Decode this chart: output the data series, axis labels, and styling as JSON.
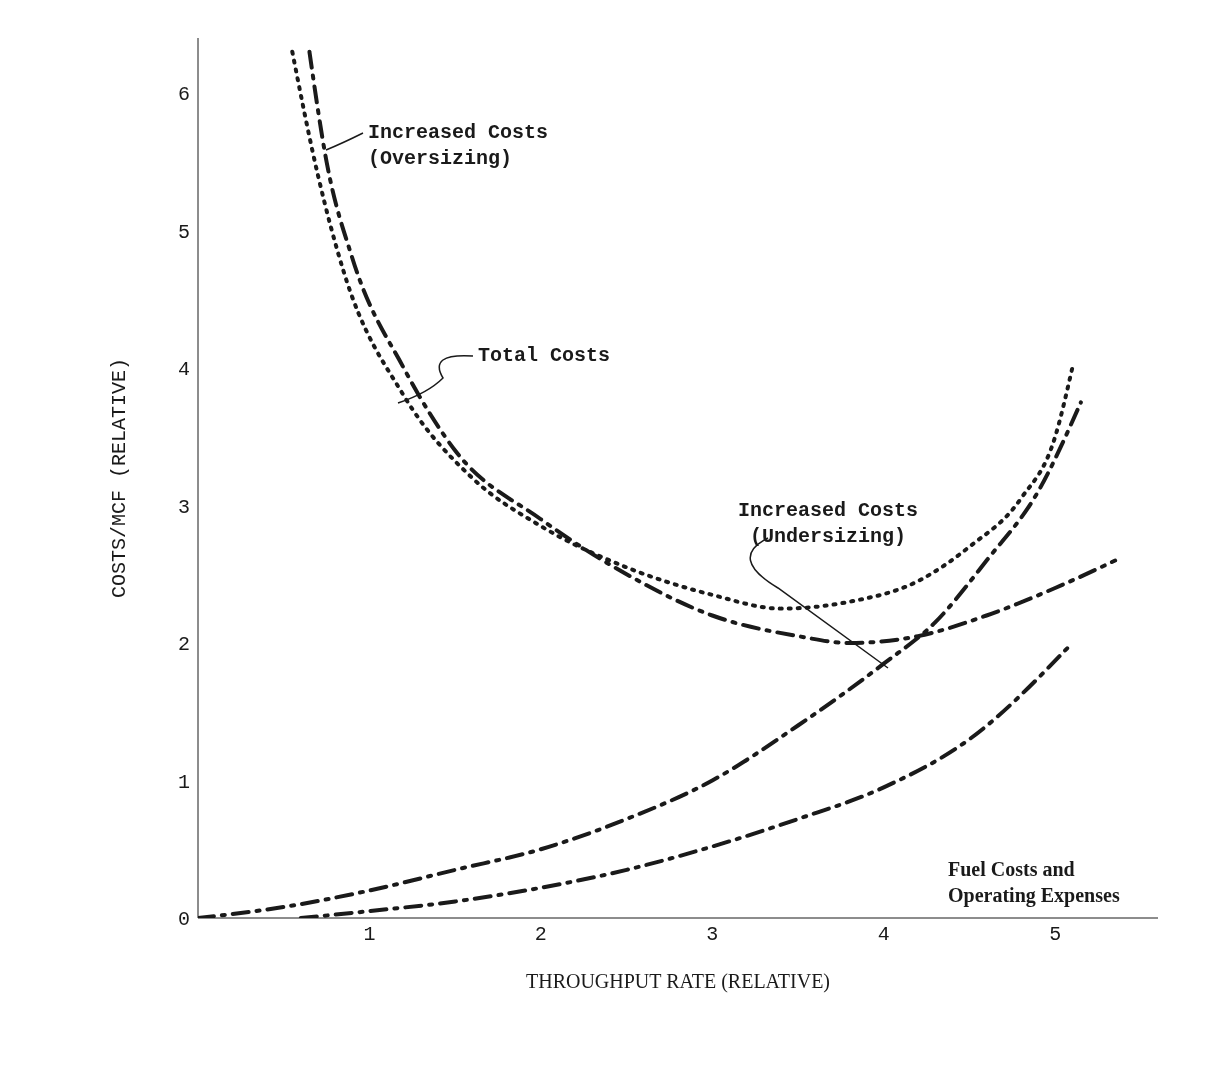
{
  "chart_data": {
    "type": "line",
    "xlabel": "THROUGHPUT RATE (RELATIVE)",
    "ylabel": "COSTS/MCF (RELATIVE)",
    "xlim": [
      0,
      5.6
    ],
    "xticks": [
      1,
      2,
      3,
      4,
      5
    ],
    "ylim": [
      0,
      6.4
    ],
    "yticks": [
      0,
      1,
      2,
      3,
      4,
      5,
      6
    ],
    "grid": false,
    "legend": false,
    "marker": "none",
    "series": [
      {
        "color": "#1a1a1a",
        "line_style": "dotted",
        "x": [
          0.55,
          0.7,
          0.85,
          1.2,
          1.6,
          2.0,
          2.5,
          3.0,
          3.4,
          3.8,
          4.2,
          4.5,
          4.8,
          5.0,
          5.1
        ],
        "values": [
          6.3,
          5.4,
          4.7,
          3.8,
          3.2,
          2.85,
          2.55,
          2.35,
          2.25,
          2.3,
          2.45,
          2.7,
          3.05,
          3.5,
          4.0
        ]
      },
      {
        "color": "#1a1a1a",
        "line_style": "dashed",
        "x": [
          0.65,
          0.75,
          0.9,
          1.2,
          1.5,
          2.0,
          2.5,
          3.0,
          3.5,
          3.8,
          4.2,
          4.6,
          5.0,
          5.35
        ],
        "values": [
          6.3,
          5.5,
          4.8,
          4.0,
          3.4,
          2.9,
          2.5,
          2.2,
          2.05,
          2.0,
          2.05,
          2.2,
          2.4,
          2.6
        ]
      },
      {
        "color": "#1a1a1a",
        "line_style": "dashed",
        "x": [
          0,
          0.5,
          1,
          1.5,
          2,
          2.5,
          3,
          3.5,
          4,
          4.3,
          4.6,
          4.9,
          5.15
        ],
        "values": [
          0,
          0.08,
          0.2,
          0.35,
          0.5,
          0.72,
          1.0,
          1.4,
          1.85,
          2.15,
          2.6,
          3.1,
          3.75
        ]
      },
      {
        "color": "#1a1a1a",
        "line_style": "dashed",
        "x": [
          0.6,
          1,
          1.5,
          2,
          2.5,
          3,
          3.5,
          4,
          4.5,
          5.1
        ],
        "values": [
          0,
          0.05,
          0.12,
          0.22,
          0.35,
          0.52,
          0.72,
          0.95,
          1.3,
          2.0
        ]
      }
    ],
    "annotations": [
      "Increased Costs\n(Oversizing)",
      "Total Costs",
      "Increased Costs\n(Undersizing)",
      "Fuel Costs and\nOperating Expenses"
    ]
  }
}
